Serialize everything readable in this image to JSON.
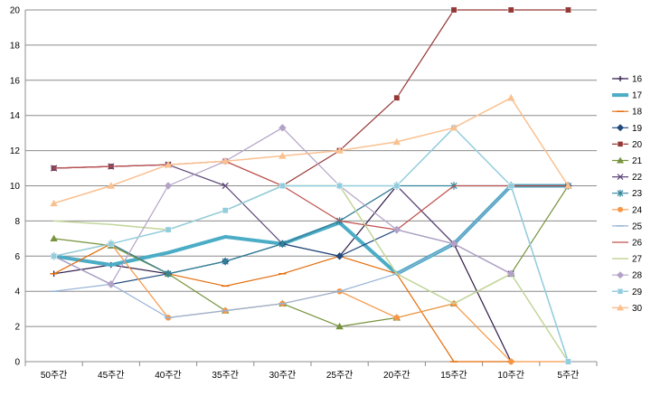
{
  "chart_data": {
    "type": "line",
    "title": "",
    "xlabel": "",
    "ylabel": "",
    "categories": [
      "50주간",
      "45주간",
      "40주간",
      "35주간",
      "30주간",
      "25주간",
      "20주간",
      "15주간",
      "10주간",
      "5주간"
    ],
    "ylim": [
      0,
      20
    ],
    "yticks": [
      0,
      2,
      4,
      6,
      8,
      10,
      12,
      14,
      16,
      18,
      20
    ],
    "grid": true,
    "legend_position": "right",
    "series": [
      {
        "name": "16",
        "color": "#2E1A47",
        "marker": "plus",
        "width": 1.2,
        "values": [
          5,
          5.5,
          5,
          5.7,
          6.7,
          6,
          10,
          6.7,
          0,
          null
        ]
      },
      {
        "name": "17",
        "color": "#4BACC6",
        "marker": "none",
        "width": 4,
        "values": [
          6,
          5.5,
          6.2,
          7.1,
          6.7,
          7.9,
          5,
          6.7,
          10,
          10
        ]
      },
      {
        "name": "18",
        "color": "#E36C09",
        "marker": "dash",
        "width": 1.2,
        "values": [
          5,
          6.7,
          5,
          4.3,
          5,
          6,
          5,
          0,
          0,
          null
        ]
      },
      {
        "name": "19",
        "color": "#1F497D",
        "marker": "diamond",
        "width": 1.2,
        "values": [
          6,
          4.4,
          5,
          5.7,
          6.7,
          6,
          7.5,
          6.7,
          10,
          10
        ]
      },
      {
        "name": "20",
        "color": "#953735",
        "marker": "square",
        "width": 1.2,
        "values": [
          11,
          11.1,
          11.2,
          11.4,
          10,
          12,
          15,
          20,
          20,
          20
        ]
      },
      {
        "name": "21",
        "color": "#77933C",
        "marker": "triangle",
        "width": 1.2,
        "values": [
          7,
          6.6,
          5,
          2.9,
          3.3,
          2,
          2.5,
          3.3,
          5,
          10
        ]
      },
      {
        "name": "22",
        "color": "#604A7B",
        "marker": "x",
        "width": 1.2,
        "values": [
          11,
          11.1,
          11.2,
          10,
          6.7,
          8,
          10,
          6.7,
          5,
          null
        ]
      },
      {
        "name": "23",
        "color": "#31859C",
        "marker": "star",
        "width": 1.2,
        "values": [
          6,
          6.7,
          5,
          5.7,
          6.7,
          8,
          10,
          10,
          10,
          10
        ]
      },
      {
        "name": "24",
        "color": "#F79646",
        "marker": "circle",
        "width": 1.2,
        "values": [
          6,
          6.7,
          2.5,
          2.9,
          3.3,
          4,
          2.5,
          3.3,
          0,
          0
        ]
      },
      {
        "name": "25",
        "color": "#95B3D7",
        "marker": "dash",
        "width": 1.2,
        "values": [
          4,
          4.4,
          2.5,
          2.9,
          3.3,
          4,
          5,
          6.7,
          10,
          0
        ]
      },
      {
        "name": "26",
        "color": "#C0504D",
        "marker": "none",
        "width": 1.2,
        "values": [
          11,
          11.1,
          11.2,
          11.4,
          10,
          8,
          7.5,
          10,
          10,
          10
        ]
      },
      {
        "name": "27",
        "color": "#C3D69B",
        "marker": "none",
        "width": 1.5,
        "values": [
          8,
          7.8,
          7.5,
          8.6,
          10,
          10,
          5,
          3.3,
          5,
          0
        ]
      },
      {
        "name": "28",
        "color": "#B3A2C7",
        "marker": "diamond",
        "width": 1.2,
        "values": [
          6,
          4.4,
          10,
          11.4,
          13.3,
          10,
          7.5,
          6.7,
          5,
          null
        ]
      },
      {
        "name": "29",
        "color": "#93CDDD",
        "marker": "square",
        "width": 1.5,
        "values": [
          6,
          6.7,
          7.5,
          8.6,
          10,
          10,
          10,
          13.3,
          10,
          0
        ]
      },
      {
        "name": "30",
        "color": "#FAC090",
        "marker": "triangle",
        "width": 1.5,
        "values": [
          9,
          10,
          11.2,
          11.4,
          11.7,
          12,
          12.5,
          13.3,
          15,
          10
        ]
      }
    ]
  }
}
